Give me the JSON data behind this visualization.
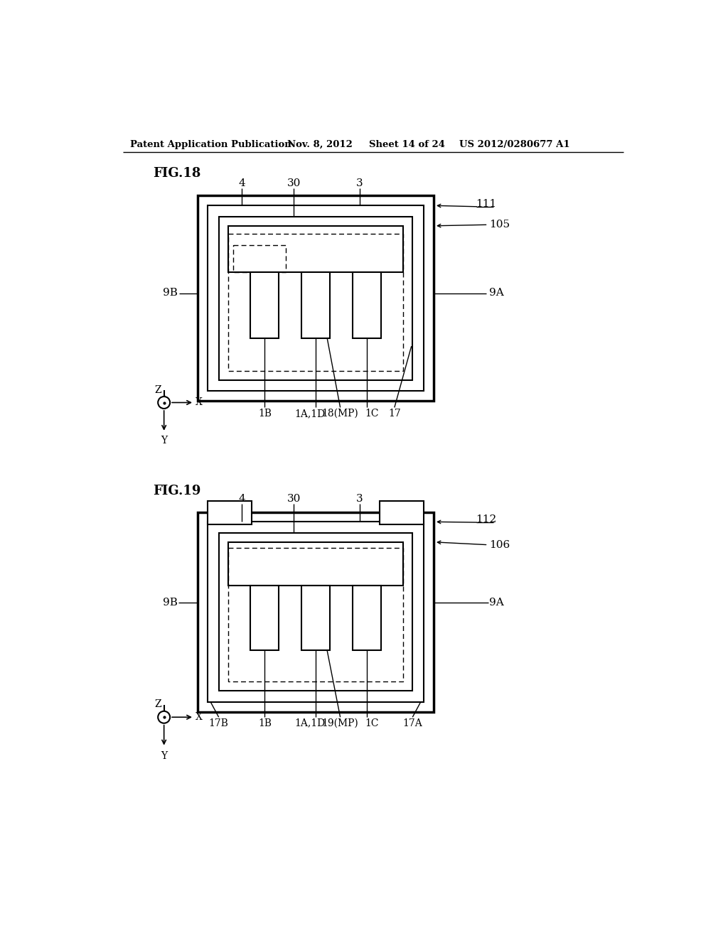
{
  "title_header": "Patent Application Publication",
  "date_header": "Nov. 8, 2012",
  "sheet_header": "Sheet 14 of 24",
  "patent_header": "US 2012/0280677 A1",
  "fig18_label": "FIG.18",
  "fig19_label": "FIG.19",
  "background_color": "#ffffff",
  "line_color": "#000000"
}
